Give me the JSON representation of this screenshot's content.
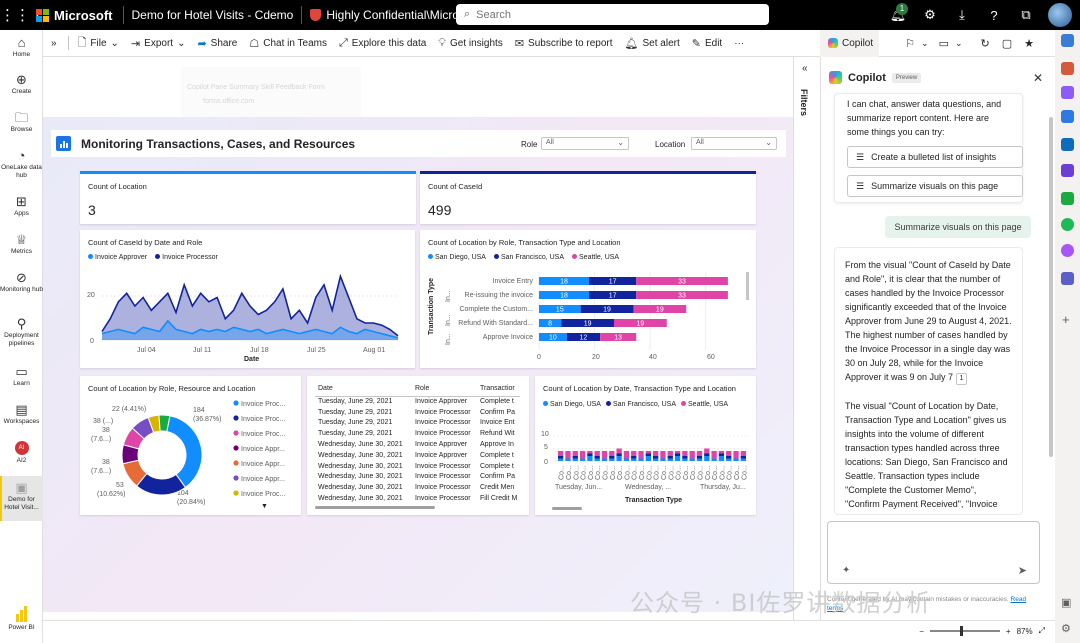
{
  "topbar": {
    "brand": "Microsoft",
    "workspace": "Demo for Hotel Visits - Cdemo",
    "sensitivity": "Highly Confidential\\Microsoft FTE",
    "search_placeholder": "Search",
    "notification_count": "1"
  },
  "leftnav": {
    "items": [
      {
        "label": "Home",
        "icon": "home-icon"
      },
      {
        "label": "Create",
        "icon": "plus-circle-icon"
      },
      {
        "label": "Browse",
        "icon": "folder-icon"
      },
      {
        "label": "OneLake data hub",
        "icon": "onelake-icon"
      },
      {
        "label": "Apps",
        "icon": "apps-icon"
      },
      {
        "label": "Metrics",
        "icon": "trophy-icon"
      },
      {
        "label": "Monitoring hub",
        "icon": "monitor-icon"
      },
      {
        "label": "Deployment pipelines",
        "icon": "rocket-icon"
      },
      {
        "label": "Learn",
        "icon": "book-icon"
      },
      {
        "label": "Workspaces",
        "icon": "stack-icon"
      },
      {
        "label": "AI2",
        "icon": "workspace-avatar"
      },
      {
        "label": "Demo for Hotel Visit...",
        "icon": "report-icon"
      }
    ],
    "footer": "Power BI",
    "ai2_initials": "AI"
  },
  "toolbar": {
    "file": "File",
    "export": "Export",
    "share": "Share",
    "chat": "Chat in Teams",
    "explore": "Explore this data",
    "insights": "Get insights",
    "subscribe": "Subscribe to report",
    "alert": "Set alert",
    "edit": "Edit",
    "more": "···",
    "copilot": "Copilot"
  },
  "ghost_popup": {
    "line1": "Copilot Pane Summary Skill Feedback Form",
    "line2": "forms.office.com"
  },
  "report": {
    "title": "Monitoring Transactions, Cases, and Resources",
    "role_label": "Role",
    "role_value": "All",
    "location_label": "Location",
    "location_value": "All",
    "kpi_location_title": "Count of Location",
    "kpi_location_value": "3",
    "kpi_case_title": "Count of CaseId",
    "kpi_case_value": "499"
  },
  "colors": {
    "series1": "#118dff",
    "series2": "#12239e",
    "series3": "#e044a7",
    "accent_yellow": "#f2c811"
  },
  "area_chart": {
    "title": "Count of CaseId by Date and Role",
    "legend": [
      "Invoice Approver",
      "Invoice Processor"
    ],
    "xlabel": "Date",
    "xticks": [
      "Jul 04",
      "Jul 11",
      "Jul 18",
      "Jul 25",
      "Aug 01"
    ],
    "yticks": [
      "0",
      "20"
    ]
  },
  "stacked_bar": {
    "title": "Count of Location by Role, Transaction Type and Location",
    "legend": [
      "San Diego, USA",
      "San Francisco, USA",
      "Seattle, USA"
    ],
    "ylabel": "Transaction Type",
    "ysublabels": [
      "In...",
      "In...",
      "In..."
    ],
    "xticks": [
      "0",
      "20",
      "40",
      "60"
    ]
  },
  "donut": {
    "title": "Count of Location by Role, Resource and Location",
    "labels": [
      "184",
      "(36.87%)",
      "104",
      "(20.84%)",
      "53",
      "(10.62%)",
      "38 (...)",
      "38",
      "(7.6...)",
      "38",
      "(7.6...)",
      "22 (4.41%)",
      "38 (7.6...)"
    ],
    "legend": [
      "Invoice Proc...",
      "Invoice Proc...",
      "Invoice Proc...",
      "Invoice Appr...",
      "Invoice Appr...",
      "Invoice Appr...",
      "Invoice Proc..."
    ]
  },
  "table": {
    "headers": [
      "Date",
      "Role",
      "Transactior"
    ],
    "rows": [
      [
        "Tuesday, June 29, 2021",
        "Invoice Approver",
        "Complete t"
      ],
      [
        "Tuesday, June 29, 2021",
        "Invoice Processor",
        "Confirm Pa"
      ],
      [
        "Tuesday, June 29, 2021",
        "Invoice Processor",
        "Invoice Ent"
      ],
      [
        "Tuesday, June 29, 2021",
        "Invoice Processor",
        "Refund Wit"
      ],
      [
        "Wednesday, June 30, 2021",
        "Invoice Approver",
        "Approve In"
      ],
      [
        "Wednesday, June 30, 2021",
        "Invoice Approver",
        "Complete t"
      ],
      [
        "Wednesday, June 30, 2021",
        "Invoice Processor",
        "Complete t"
      ],
      [
        "Wednesday, June 30, 2021",
        "Invoice Processor",
        "Confirm Pa"
      ],
      [
        "Wednesday, June 30, 2021",
        "Invoice Processor",
        "Credit Men"
      ],
      [
        "Wednesday, June 30, 2021",
        "Invoice Processor",
        "Fill Credit M"
      ]
    ]
  },
  "column_chart": {
    "title": "Count of Location by Date, Transaction Type and Location",
    "legend": [
      "San Diego, USA",
      "San Francisco, USA",
      "Seattle, USA"
    ],
    "xlabel": "Transaction Type",
    "yticks": [
      "0",
      "5",
      "10"
    ],
    "xticks": [
      "Tuesday, Jun...",
      "Wednesday, ...",
      "Thursday, Ju..."
    ],
    "tick_label": "Co..."
  },
  "filters": {
    "label": "Filters"
  },
  "copilot": {
    "title": "Copilot",
    "badge": "Preview",
    "intro": "I can chat, answer data questions, and summarize report content. Here are some things you can try:",
    "suggestion1": "Create a bulleted list of insights",
    "suggestion2": "Summarize visuals on this page",
    "user_message": "Summarize visuals on this page",
    "response_p1": "From the visual \"Count of CaseId by Date and Role\", it is clear that the number of cases handled by the Invoice Processor significantly exceeded that of the Invoice Approver from June 29 to August 4, 2021. The highest number of cases handled by the Invoice Processor in a single day was 30 on July 28, while for the Invoice Approver it was 9 on July 7",
    "response_ref": "1",
    "response_p2": "The visual \"Count of Location by Date, Transaction Type and Location\" gives us insights into the volume of different transaction types handled across three locations: San Diego, San Francisco and Seattle. Transaction types include \"Complete the Customer Memo\", \"Confirm Payment Received\", \"Invoice Entry\",",
    "disclaimer": "Content generated by AI may contain mistakes or inaccuracies.",
    "read_terms": "Read terms"
  },
  "statusbar": {
    "zoom": "87%",
    "zoom_level_percent": 87
  },
  "watermark": "公众号 · BI佐罗讲数据分析",
  "chart_data": [
    {
      "type": "area",
      "title": "Count of CaseId by Date and Role",
      "xlabel": "Date",
      "ylabel": "",
      "ylim": [
        0,
        32
      ],
      "x": [
        "Jun 29",
        "Jun 30",
        "Jul 01",
        "Jul 02",
        "Jul 03",
        "Jul 04",
        "Jul 05",
        "Jul 06",
        "Jul 07",
        "Jul 08",
        "Jul 09",
        "Jul 10",
        "Jul 11",
        "Jul 12",
        "Jul 13",
        "Jul 14",
        "Jul 15",
        "Jul 16",
        "Jul 17",
        "Jul 18",
        "Jul 19",
        "Jul 20",
        "Jul 21",
        "Jul 22",
        "Jul 23",
        "Jul 24",
        "Jul 25",
        "Jul 26",
        "Jul 27",
        "Jul 28",
        "Jul 29",
        "Jul 30",
        "Jul 31",
        "Aug 01",
        "Aug 02",
        "Aug 03",
        "Aug 04"
      ],
      "series": [
        {
          "name": "Invoice Approver",
          "values": [
            3,
            4,
            5,
            4,
            3,
            6,
            5,
            4,
            9,
            5,
            4,
            3,
            5,
            4,
            5,
            4,
            6,
            5,
            4,
            5,
            3,
            4,
            5,
            4,
            3,
            4,
            5,
            4,
            3,
            6,
            4,
            3,
            5,
            4,
            3,
            2,
            1
          ]
        },
        {
          "name": "Invoice Processor",
          "values": [
            4,
            10,
            18,
            22,
            16,
            20,
            14,
            18,
            22,
            13,
            26,
            16,
            22,
            18,
            20,
            10,
            14,
            22,
            16,
            12,
            14,
            18,
            24,
            10,
            14,
            8,
            20,
            26,
            14,
            30,
            20,
            10,
            8,
            8,
            7,
            5,
            2
          ]
        }
      ]
    },
    {
      "type": "bar",
      "orientation": "horizontal-stacked",
      "title": "Count of Location by Role, Transaction Type and Location",
      "categories": [
        "Invoice Entry",
        "Re-issuing the invoice",
        "Complete the Custom...",
        "Refund With Standard...",
        "Approve Invoice"
      ],
      "series": [
        {
          "name": "San Diego, USA",
          "values": [
            18,
            18,
            15,
            8,
            10
          ]
        },
        {
          "name": "San Francisco, USA",
          "values": [
            17,
            17,
            19,
            19,
            12
          ]
        },
        {
          "name": "Seattle, USA",
          "values": [
            33,
            33,
            19,
            19,
            13
          ]
        }
      ],
      "xlim": [
        0,
        72
      ]
    },
    {
      "type": "pie",
      "title": "Count of Location by Role, Resource and Location",
      "values": [
        184,
        104,
        53,
        38,
        38,
        38,
        22,
        22
      ],
      "colors": [
        "#118dff",
        "#12239e",
        "#e66c37",
        "#6b007b",
        "#e044a7",
        "#744ec2",
        "#d9b300",
        "#1aab40"
      ]
    },
    {
      "type": "bar",
      "orientation": "vertical-stacked",
      "title": "Count of Location by Date, Transaction Type and Location",
      "xlabel": "Transaction Type",
      "ylim": [
        0,
        14
      ],
      "series": [
        {
          "name": "San Diego, USA",
          "values": [
            1,
            1,
            1,
            1,
            2,
            1,
            1,
            1,
            2,
            1,
            1,
            1,
            2,
            1,
            1,
            1,
            2,
            1,
            1,
            1,
            2,
            1,
            2,
            1,
            1,
            1
          ]
        },
        {
          "name": "San Francisco, USA",
          "values": [
            1,
            0,
            1,
            0,
            1,
            1,
            0,
            1,
            1,
            0,
            1,
            0,
            1,
            1,
            0,
            1,
            1,
            1,
            0,
            1,
            1,
            0,
            1,
            1,
            0,
            1
          ]
        },
        {
          "name": "Seattle, USA",
          "values": [
            2,
            3,
            2,
            3,
            1,
            2,
            3,
            2,
            2,
            3,
            2,
            3,
            1,
            2,
            3,
            2,
            1,
            2,
            3,
            2,
            2,
            3,
            1,
            2,
            3,
            2
          ]
        }
      ]
    }
  ]
}
